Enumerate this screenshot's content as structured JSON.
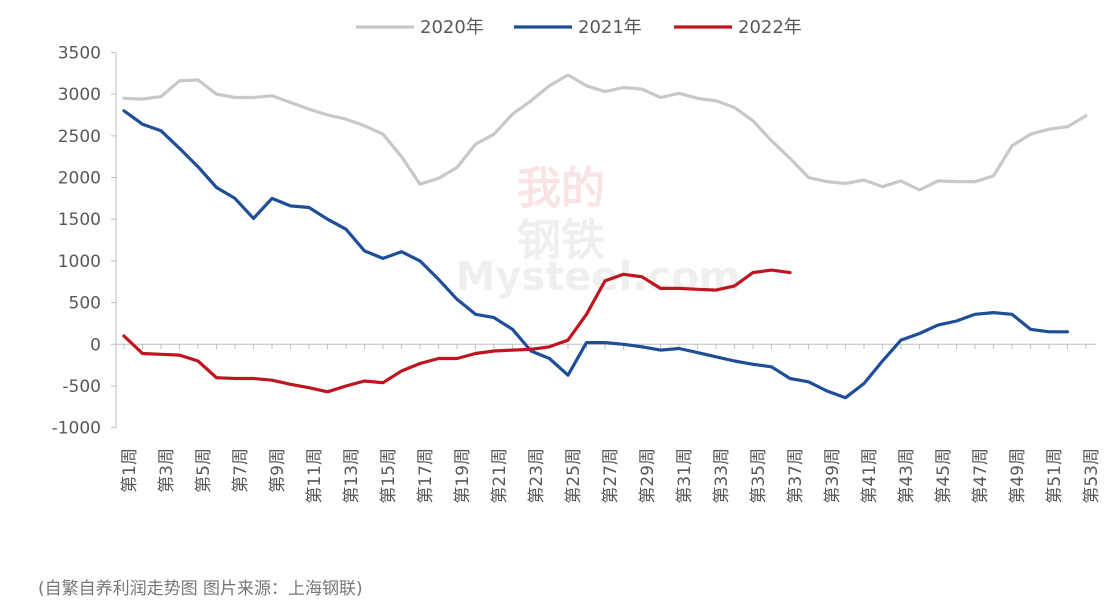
{
  "caption": "(自繁自养利润走势图 图片来源：上海钢联)",
  "watermark": {
    "cn": [
      "我的",
      "钢铁"
    ],
    "en": "Mysteel.com"
  },
  "chart_data": {
    "type": "line",
    "title": "",
    "xlabel": "",
    "ylabel": "",
    "ylim": [
      -1000,
      3500
    ],
    "yticks": [
      -1000,
      -500,
      0,
      500,
      1000,
      1500,
      2000,
      2500,
      3000,
      3500
    ],
    "x": [
      "第1周",
      "第2周",
      "第3周",
      "第4周",
      "第5周",
      "第6周",
      "第7周",
      "第8周",
      "第9周",
      "第10周",
      "第11周",
      "第12周",
      "第13周",
      "第14周",
      "第15周",
      "第16周",
      "第17周",
      "第18周",
      "第19周",
      "第20周",
      "第21周",
      "第22周",
      "第23周",
      "第24周",
      "第25周",
      "第26周",
      "第27周",
      "第28周",
      "第29周",
      "第30周",
      "第31周",
      "第32周",
      "第33周",
      "第34周",
      "第35周",
      "第36周",
      "第37周",
      "第38周",
      "第39周",
      "第40周",
      "第41周",
      "第42周",
      "第43周",
      "第44周",
      "第45周",
      "第46周",
      "第47周",
      "第48周",
      "第49周",
      "第50周",
      "第51周",
      "第52周",
      "第53周"
    ],
    "xtick_labels": [
      "第1周",
      "第3周",
      "第5周",
      "第7周",
      "第9周",
      "第11周",
      "第13周",
      "第15周",
      "第17周",
      "第19周",
      "第21周",
      "第23周",
      "第25周",
      "第27周",
      "第29周",
      "第31周",
      "第33周",
      "第35周",
      "第37周",
      "第39周",
      "第41周",
      "第43周",
      "第45周",
      "第47周",
      "第49周",
      "第51周",
      "第53周"
    ],
    "grid": false,
    "legend_position": "top-center",
    "series": [
      {
        "name": "2020年",
        "color": "#c8c8c8",
        "values": [
          2950,
          2940,
          2970,
          3160,
          3170,
          3000,
          2960,
          2960,
          2980,
          2900,
          2820,
          2750,
          2700,
          2620,
          2520,
          2250,
          1920,
          1990,
          2120,
          2400,
          2520,
          2760,
          2920,
          3100,
          3230,
          3100,
          3030,
          3080,
          3060,
          2960,
          3010,
          2950,
          2920,
          2840,
          2680,
          2440,
          2230,
          2000,
          1950,
          1930,
          1970,
          1890,
          1960,
          1850,
          1960,
          1950,
          1950,
          2020,
          2380,
          2520,
          2580,
          2610,
          2740
        ]
      },
      {
        "name": "2021年",
        "color": "#1f4e99",
        "values": [
          2800,
          2640,
          2560,
          2350,
          2130,
          1880,
          1750,
          1510,
          1750,
          1660,
          1640,
          1500,
          1380,
          1120,
          1030,
          1110,
          1000,
          780,
          540,
          360,
          320,
          180,
          -80,
          -170,
          -370,
          20,
          20,
          0,
          -30,
          -70,
          -50,
          -100,
          -150,
          -200,
          -240,
          -270,
          -410,
          -450,
          -560,
          -640,
          -470,
          -200,
          50,
          130,
          230,
          280,
          360,
          380,
          360,
          180,
          150,
          150,
          null
        ]
      },
      {
        "name": "2022年",
        "color": "#c0141e",
        "values": [
          100,
          -110,
          -120,
          -130,
          -200,
          -400,
          -410,
          -410,
          -430,
          -480,
          -520,
          -570,
          -500,
          -440,
          -460,
          -320,
          -230,
          -170,
          -170,
          -110,
          -80,
          -70,
          -60,
          -30,
          50,
          360,
          760,
          840,
          810,
          670,
          670,
          660,
          650,
          700,
          860,
          890,
          860,
          null,
          null,
          null,
          null,
          null,
          null,
          null,
          null,
          null,
          null,
          null,
          null,
          null,
          null,
          null,
          null
        ]
      }
    ]
  }
}
